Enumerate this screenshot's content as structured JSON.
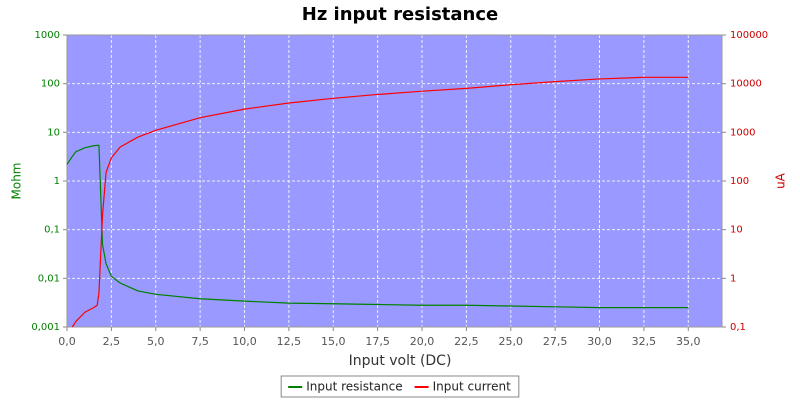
{
  "chart_data": {
    "type": "line",
    "title": "Hz input resistance",
    "xlabel": "Input volt (DC)",
    "ylabel": "Mohm",
    "y2label": "uA",
    "x": [
      0,
      0.3,
      0.5,
      1.0,
      1.5,
      1.7,
      1.8,
      2.0,
      2.2,
      2.5,
      3,
      4,
      5,
      7.5,
      10,
      12.5,
      15,
      17.5,
      20,
      22.5,
      25,
      27.5,
      30,
      32.5,
      35
    ],
    "series": [
      {
        "name": "Input resistance",
        "color": "#008000",
        "axis": "y",
        "values": [
          2.2,
          3.2,
          4.0,
          4.8,
          5.3,
          5.4,
          5.4,
          0.05,
          0.02,
          0.011,
          0.008,
          0.0055,
          0.0047,
          0.0038,
          0.0034,
          0.0031,
          0.003,
          0.0029,
          0.0028,
          0.0028,
          0.0027,
          0.0026,
          0.0025,
          0.0025,
          0.0025
        ]
      },
      {
        "name": "Input current",
        "color": "#ff0000",
        "axis": "y2",
        "values": [
          null,
          0.1,
          0.13,
          0.2,
          0.25,
          0.28,
          0.5,
          20,
          150,
          300,
          500,
          800,
          1100,
          2000,
          3000,
          4000,
          5000,
          6000,
          7000,
          8000,
          9500,
          11000,
          12500,
          13500,
          13500
        ]
      }
    ],
    "xlim": [
      0,
      36.9
    ],
    "xticks": [
      {
        "value": 0,
        "label": "0,0"
      },
      {
        "value": 2.5,
        "label": "2,5"
      },
      {
        "value": 5,
        "label": "5,0"
      },
      {
        "value": 7.5,
        "label": "7,5"
      },
      {
        "value": 10,
        "label": "10,0"
      },
      {
        "value": 12.5,
        "label": "12,5"
      },
      {
        "value": 15,
        "label": "15,0"
      },
      {
        "value": 17.5,
        "label": "17,5"
      },
      {
        "value": 20,
        "label": "20,0"
      },
      {
        "value": 22.5,
        "label": "22,5"
      },
      {
        "value": 25,
        "label": "25,0"
      },
      {
        "value": 27.5,
        "label": "27,5"
      },
      {
        "value": 30,
        "label": "30,0"
      },
      {
        "value": 32.5,
        "label": "32,5"
      },
      {
        "value": 35,
        "label": "35,0"
      }
    ],
    "ylim": [
      0.001,
      1000
    ],
    "yticks": [
      {
        "value": 0.001,
        "label": "0,001"
      },
      {
        "value": 0.01,
        "label": "0,01"
      },
      {
        "value": 0.1,
        "label": "0,1"
      },
      1,
      10,
      100,
      1000
    ],
    "y2lim": [
      0.1,
      100000
    ],
    "y2ticks": [
      {
        "value": 0.1,
        "label": "0,1"
      },
      1,
      10,
      100,
      1000,
      10000,
      100000
    ],
    "log_y": true,
    "log_y2": true,
    "grid": true,
    "background": "#9999ff",
    "legend": "bottom"
  }
}
